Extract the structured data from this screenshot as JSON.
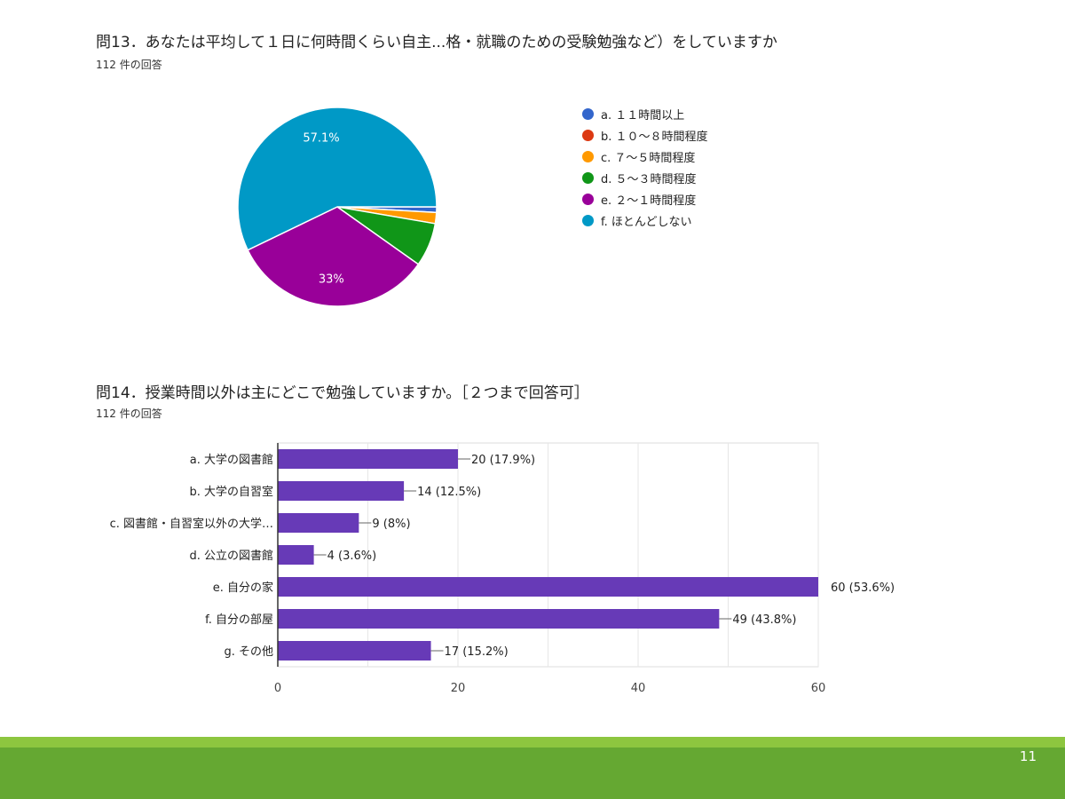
{
  "slide": {
    "page_number": "11"
  },
  "q13": {
    "title": "問13．あなたは平均して１日に何時間くらい自主...格・就職のための受験勉強など）をしていますか",
    "responses": "112 件の回答"
  },
  "q14": {
    "title": "問14．授業時間以外は主にどこで勉強していますか。［２つまで回答可］",
    "responses": "112 件の回答"
  },
  "chart_data": [
    {
      "type": "pie",
      "categories": [
        "a. １１時間以上",
        "b. １０～８時間程度",
        "c. ７～５時間程度",
        "d. ５～３時間程度",
        "e. ２～１時間程度",
        "f. ほとんどしない"
      ],
      "values": [
        0.9,
        0,
        1.8,
        7.1,
        33,
        57.1
      ],
      "unit": "%",
      "colors": [
        "#3366cc",
        "#dc3912",
        "#ff9900",
        "#109618",
        "#990099",
        "#0099c6"
      ],
      "data_labels": [
        "",
        "",
        "",
        "",
        "33%",
        "57.1%"
      ],
      "legend_position": "right"
    },
    {
      "type": "bar",
      "orientation": "horizontal",
      "categories": [
        "a. 大学の図書館",
        "b. 大学の自習室",
        "c. 図書館・自習室以外の大学…",
        "d. 公立の図書館",
        "e. 自分の家",
        "f. 自分の部屋",
        "g. その他"
      ],
      "values": [
        20,
        14,
        9,
        4,
        60,
        49,
        17
      ],
      "data_labels": [
        "20 (17.9%)",
        "14 (12.5%)",
        "9 (8%)",
        "4 (3.6%)",
        "60 (53.6%)",
        "49 (43.8%)",
        "17 (15.2%)"
      ],
      "xlim": [
        0,
        60
      ],
      "xticks": [
        "0",
        "20",
        "40",
        "60"
      ],
      "grid": true,
      "bar_color": "#673ab7"
    }
  ]
}
